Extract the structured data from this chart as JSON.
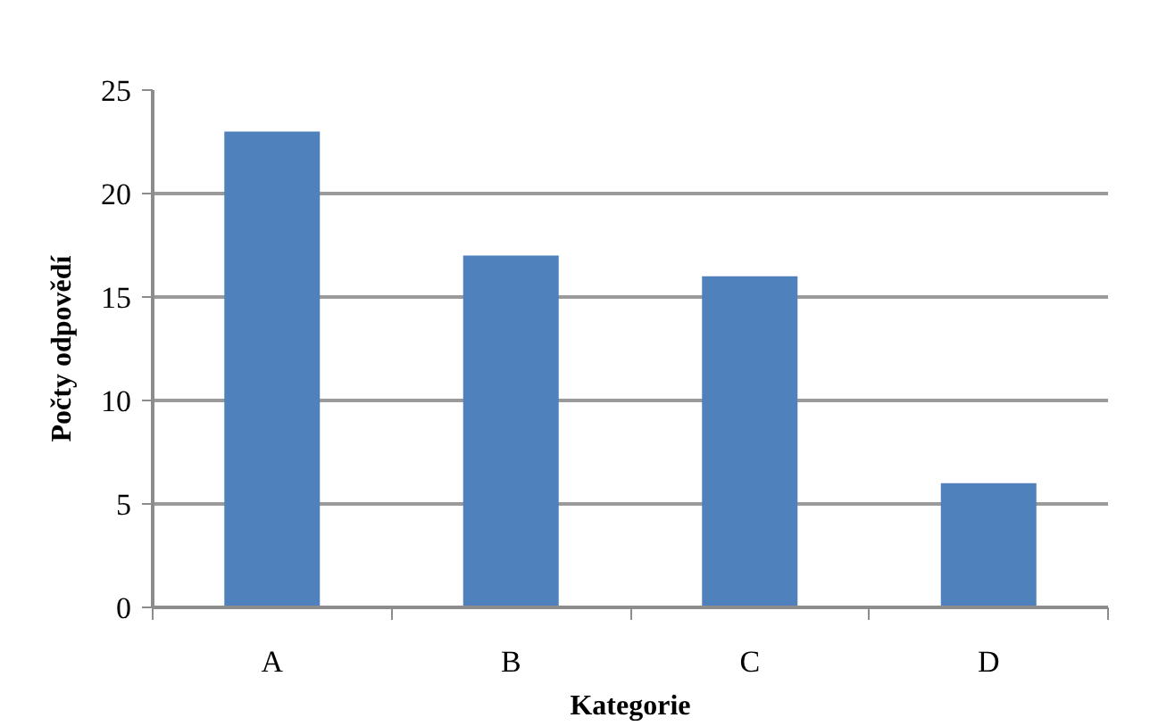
{
  "chart_data": {
    "type": "bar",
    "xlabel": "Kategorie",
    "ylabel": "Počty odpovědí",
    "categories": [
      "A",
      "B",
      "C",
      "D"
    ],
    "values": [
      23,
      17,
      16,
      6
    ],
    "color": "#4f81bd",
    "ylim": [
      0,
      25
    ],
    "yticks": [
      0,
      5,
      10,
      15,
      20,
      25
    ],
    "grid": "y"
  }
}
